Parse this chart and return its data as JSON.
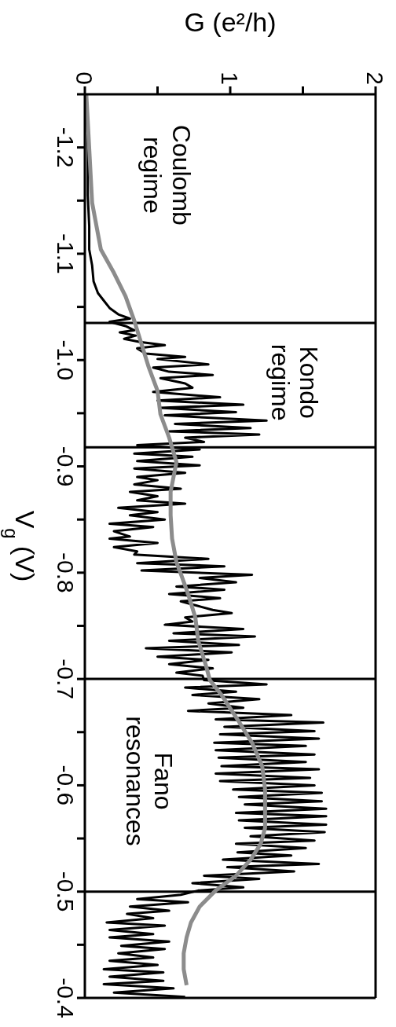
{
  "chart_data": {
    "type": "line",
    "xlabel": "G (e²/h)",
    "ylabel": "V$_{g}$ (V)",
    "ylim": [
      -0.4,
      -1.25
    ],
    "yticks": [
      {
        "value": -1.25,
        "label": null
      },
      -1.2,
      {
        "value": -1.15,
        "label": null
      },
      -1.1,
      {
        "value": -1.05,
        "label": null
      },
      {
        "value": -1,
        "label": "-1.0"
      },
      {
        "value": -0.95,
        "label": null
      },
      -0.9,
      {
        "value": -0.85,
        "label": null
      },
      -0.8,
      {
        "value": -0.75,
        "label": null
      },
      -0.7,
      {
        "value": -0.65,
        "label": null
      },
      -0.6,
      {
        "value": -0.55,
        "label": null
      },
      -0.5,
      {
        "value": -0.45,
        "label": null
      },
      -0.4
    ],
    "xlim": [
      0,
      2
    ],
    "xticks": [
      0,
      {
        "value": 0.5,
        "label": null
      },
      1,
      {
        "value": 1.5,
        "label": null
      },
      2
    ],
    "series": [
      {
        "color": "#000000",
        "values": [
          -1.25,
          -1.199,
          -1.155,
          -1.126,
          -1.104,
          -1.089,
          -1.074,
          -1.063,
          -1.056,
          -1.049,
          -1.043,
          -1.039,
          -1.036,
          -1.032,
          -1.028,
          -1.026,
          -1.023,
          -1.02,
          -1.017,
          -1.014,
          -1.011,
          -1.006,
          -1.003,
          -1.001,
          -0.996,
          -0.993,
          -0.989,
          -0.986,
          -0.983,
          -0.978,
          -0.974,
          -0.97,
          -0.965,
          -0.962,
          -0.958,
          -0.955,
          -0.951,
          -0.948,
          -0.943,
          -0.94,
          -0.936,
          -0.933,
          -0.93,
          -0.927,
          -0.923,
          -0.92,
          -0.916,
          -0.912,
          -0.909,
          -0.905,
          -0.901,
          -0.898,
          -0.894,
          -0.89,
          -0.887,
          -0.883,
          -0.879,
          -0.876,
          -0.872,
          -0.868,
          -0.865,
          -0.861,
          -0.857,
          -0.854,
          -0.85,
          -0.846,
          -0.843,
          -0.839,
          -0.834,
          -0.832,
          -0.828,
          -0.824,
          -0.82,
          -0.817,
          -0.813,
          -0.809,
          -0.806,
          -0.802,
          -0.798,
          -0.795,
          -0.791,
          -0.787,
          -0.784,
          -0.78,
          -0.776,
          -0.773,
          -0.769,
          -0.765,
          -0.762,
          -0.758,
          -0.754,
          -0.751,
          -0.747,
          -0.743,
          -0.74,
          -0.736,
          -0.732,
          -0.729,
          -0.725,
          -0.721,
          -0.718,
          -0.714,
          -0.71,
          -0.706,
          -0.703,
          -0.699,
          -0.695,
          -0.692,
          -0.688,
          -0.685,
          -0.681,
          -0.677,
          -0.673,
          -0.67,
          -0.666,
          -0.662,
          -0.659,
          -0.655,
          -0.651,
          -0.648,
          -0.644,
          -0.64,
          -0.637,
          -0.633,
          -0.629,
          -0.626,
          -0.622,
          -0.618,
          -0.615,
          -0.611,
          -0.607,
          -0.604,
          -0.6,
          -0.596,
          -0.593,
          -0.589,
          -0.585,
          -0.582,
          -0.578,
          -0.574,
          -0.571,
          -0.567,
          -0.563,
          -0.56,
          -0.556,
          -0.552,
          -0.548,
          -0.545,
          -0.541,
          -0.537,
          -0.534,
          -0.53,
          -0.526,
          -0.523,
          -0.519,
          -0.515,
          -0.512,
          -0.508,
          -0.504,
          -0.501,
          -0.497,
          -0.493,
          -0.49,
          -0.486,
          -0.482,
          -0.479,
          -0.475,
          -0.471,
          -0.468,
          -0.464,
          -0.46,
          -0.457,
          -0.453,
          -0.449,
          -0.446,
          -0.442,
          -0.438,
          -0.435,
          -0.431,
          -0.427,
          -0.424,
          -0.42,
          -0.416,
          -0.413,
          -0.409,
          -0.405,
          -0.401
        ],
        "x": [
          0.01,
          0.02,
          0.02,
          0.03,
          0.03,
          0.05,
          0.06,
          0.09,
          0.13,
          0.17,
          0.23,
          0.31,
          0.17,
          0.28,
          0.34,
          0.24,
          0.35,
          0.27,
          0.38,
          0.55,
          0.36,
          0.42,
          0.69,
          0.5,
          0.85,
          0.47,
          0.58,
          0.88,
          0.52,
          0.69,
          0.74,
          0.47,
          0.93,
          0.5,
          1.09,
          0.52,
          1.04,
          0.55,
          1.25,
          0.62,
          1.14,
          0.58,
          1.2,
          0.69,
          0.82,
          0.36,
          0.79,
          0.34,
          0.74,
          0.36,
          0.79,
          0.34,
          0.69,
          0.36,
          0.5,
          0.34,
          0.66,
          0.31,
          0.5,
          0.36,
          0.69,
          0.23,
          0.5,
          0.31,
          0.55,
          0.17,
          0.47,
          0.2,
          0.31,
          0.17,
          0.5,
          0.2,
          0.36,
          0.34,
          0.85,
          0.36,
          0.96,
          0.39,
          1.15,
          0.79,
          1.04,
          0.63,
          0.96,
          0.58,
          0.93,
          0.66,
          0.77,
          0.88,
          1.01,
          0.69,
          0.74,
          0.55,
          1.09,
          0.61,
          1.17,
          0.58,
          1.06,
          0.42,
          1.01,
          0.5,
          0.85,
          0.58,
          0.88,
          0.63,
          0.81,
          0.82,
          1.25,
          0.69,
          1.04,
          0.74,
          1.2,
          0.85,
          1.09,
          0.71,
          1.42,
          0.9,
          1.64,
          0.96,
          1.58,
          0.93,
          1.61,
          0.89,
          1.52,
          0.9,
          1.58,
          0.92,
          1.52,
          0.94,
          1.61,
          0.9,
          1.55,
          0.93,
          1.58,
          1.02,
          1.63,
          1.06,
          1.63,
          1.1,
          1.66,
          1.04,
          1.66,
          1.06,
          1.66,
          1.1,
          1.65,
          1.14,
          1.58,
          1.04,
          1.52,
          1.05,
          1.42,
          0.95,
          1.61,
          0.98,
          1.44,
          0.82,
          1.2,
          0.74,
          1.09,
          0.78,
          0.66,
          0.36,
          0.71,
          0.31,
          0.58,
          0.29,
          0.47,
          0.15,
          0.55,
          0.17,
          0.47,
          0.17,
          0.58,
          0.25,
          0.55,
          0.23,
          0.47,
          0.17,
          0.5,
          0.13,
          0.54,
          0.17,
          0.54,
          0.13,
          0.61,
          0.2,
          0.69
        ]
      },
      {
        "color": "#8c8c8c",
        "values": [
          -1.25,
          -1.199,
          -1.148,
          -1.104,
          -1.082,
          -1.06,
          -1.037,
          -1.015,
          -0.993,
          -0.971,
          -0.949,
          -0.927,
          -0.904,
          -0.876,
          -0.854,
          -0.832,
          -0.81,
          -0.799,
          -0.78,
          -0.758,
          -0.736,
          -0.714,
          -0.699,
          -0.685,
          -0.662,
          -0.64,
          -0.618,
          -0.596,
          -0.574,
          -0.56,
          -0.545,
          -0.53,
          -0.515,
          -0.501,
          -0.486,
          -0.471,
          -0.457,
          -0.442,
          -0.427,
          -0.412
        ],
        "x": [
          0.01,
          0.03,
          0.05,
          0.11,
          0.2,
          0.28,
          0.34,
          0.39,
          0.44,
          0.5,
          0.52,
          0.58,
          0.63,
          0.59,
          0.59,
          0.6,
          0.63,
          0.66,
          0.71,
          0.76,
          0.78,
          0.83,
          0.86,
          0.94,
          1.05,
          1.15,
          1.22,
          1.24,
          1.24,
          1.24,
          1.21,
          1.14,
          1.04,
          0.9,
          0.79,
          0.73,
          0.7,
          0.68,
          0.68,
          0.7
        ]
      }
    ],
    "ref_lines": [
      {
        "axis": "y",
        "value": -1.035
      },
      {
        "axis": "y",
        "value": -0.918
      },
      {
        "axis": "y",
        "value": -0.7
      },
      {
        "axis": "y",
        "value": -0.5
      }
    ],
    "annotations": [
      "Coulomb regime",
      "Kondo regime",
      "Fano resonances"
    ]
  }
}
